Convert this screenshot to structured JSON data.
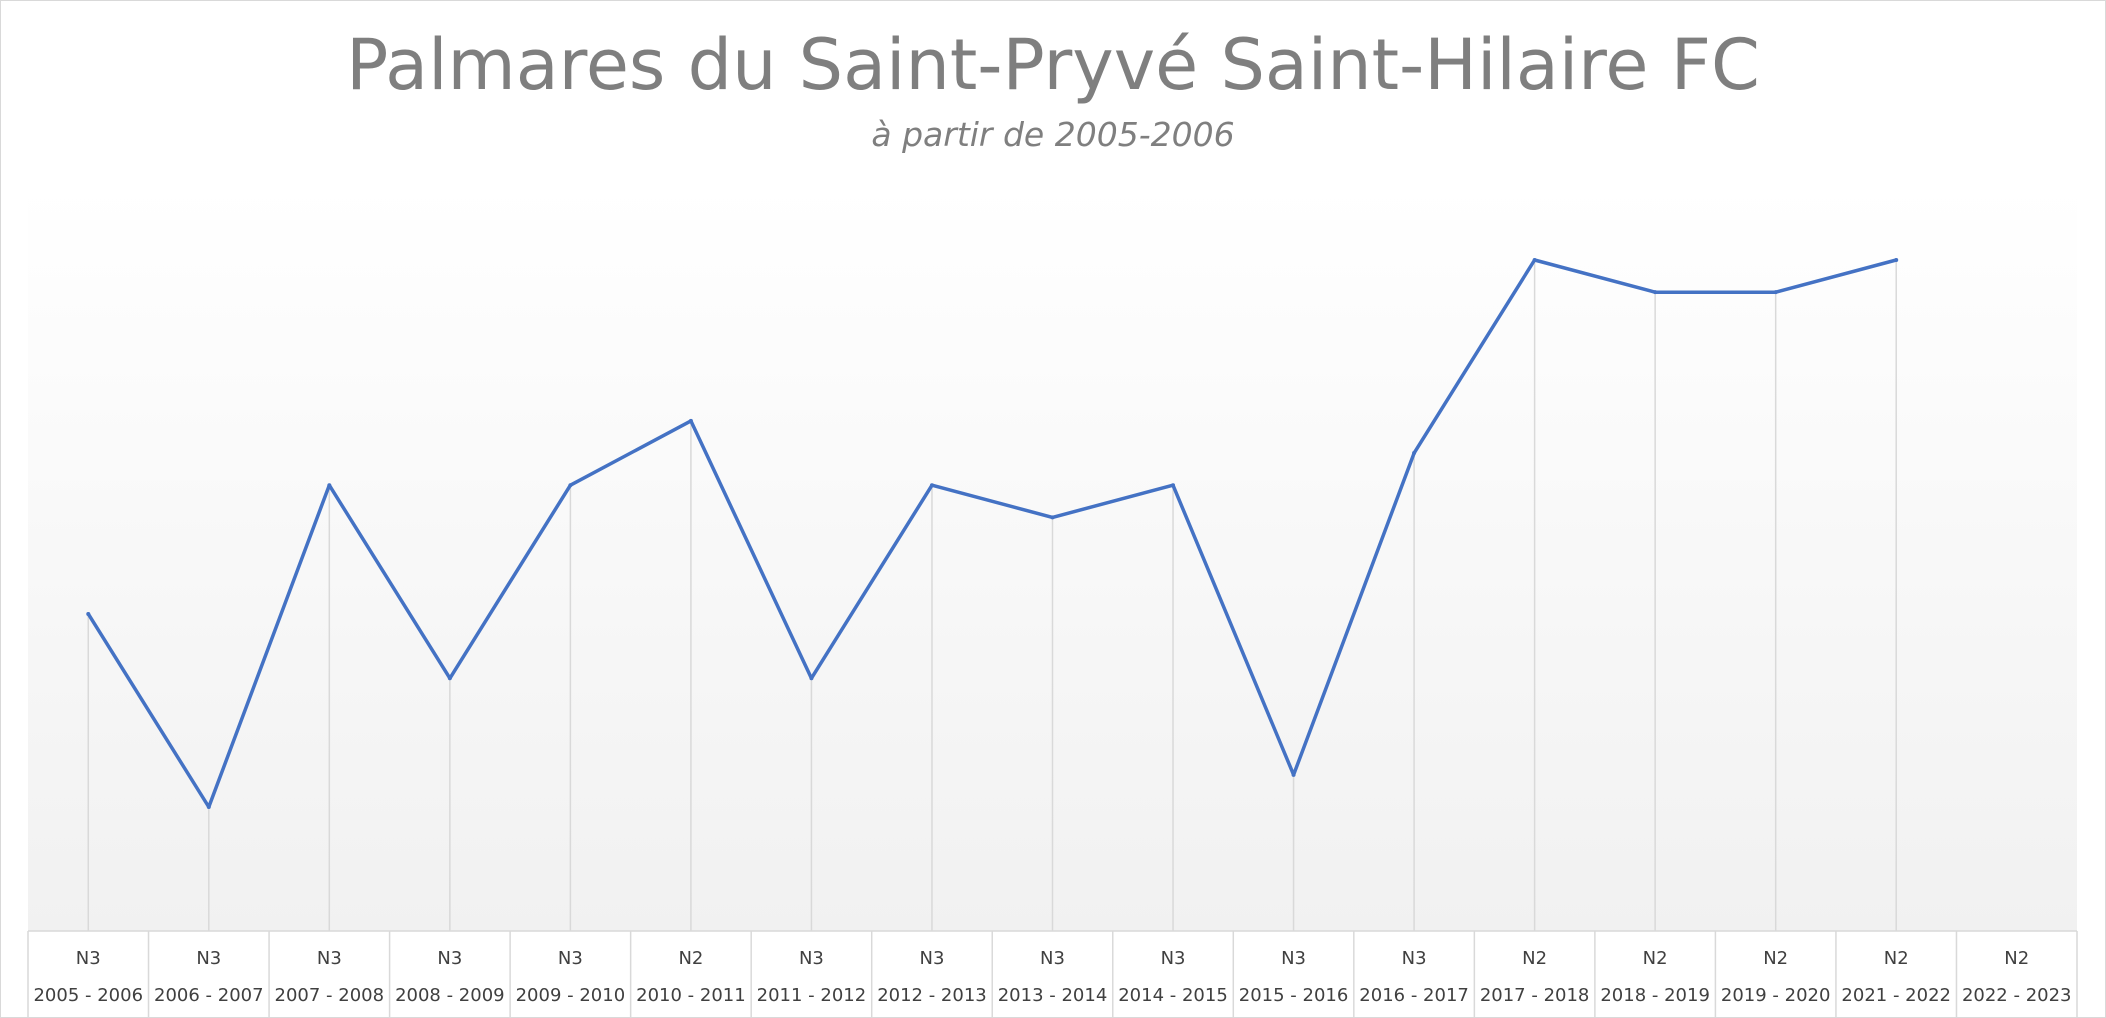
{
  "chart_data": {
    "type": "line",
    "title": "Palmares du Saint-Pryvé Saint-Hilaire FC",
    "subtitle": "à partir de 2005-2006",
    "xlabel": "",
    "ylabel": "",
    "grid": false,
    "drop_lines": true,
    "y_axis_visible": false,
    "y_direction": "rank (1 = top)",
    "ylim": [
      1,
      22
    ],
    "categories": [
      {
        "season": "2005 - 2006",
        "division": "N3"
      },
      {
        "season": "2006 - 2007",
        "division": "N3"
      },
      {
        "season": "2007 - 2008",
        "division": "N3"
      },
      {
        "season": "2008 - 2009",
        "division": "N3"
      },
      {
        "season": "2009 - 2010",
        "division": "N3"
      },
      {
        "season": "2010 - 2011",
        "division": "N2"
      },
      {
        "season": "2011 - 2012",
        "division": "N3"
      },
      {
        "season": "2012 - 2013",
        "division": "N3"
      },
      {
        "season": "2013 - 2014",
        "division": "N3"
      },
      {
        "season": "2014 - 2015",
        "division": "N3"
      },
      {
        "season": "2015 - 2016",
        "division": "N3"
      },
      {
        "season": "2016 - 2017",
        "division": "N3"
      },
      {
        "season": "2017 - 2018",
        "division": "N2"
      },
      {
        "season": "2018 - 2019",
        "division": "N2"
      },
      {
        "season": "2019 - 2020",
        "division": "N2"
      },
      {
        "season": "2021 - 2022",
        "division": "N2"
      },
      {
        "season": "2022 - 2023",
        "division": "N2"
      }
    ],
    "series": [
      {
        "color": "#4472c4",
        "values": [
          12,
          18,
          8,
          14,
          8,
          6,
          14,
          8,
          9,
          8,
          17,
          7,
          1,
          2,
          2,
          1,
          null
        ]
      }
    ]
  }
}
